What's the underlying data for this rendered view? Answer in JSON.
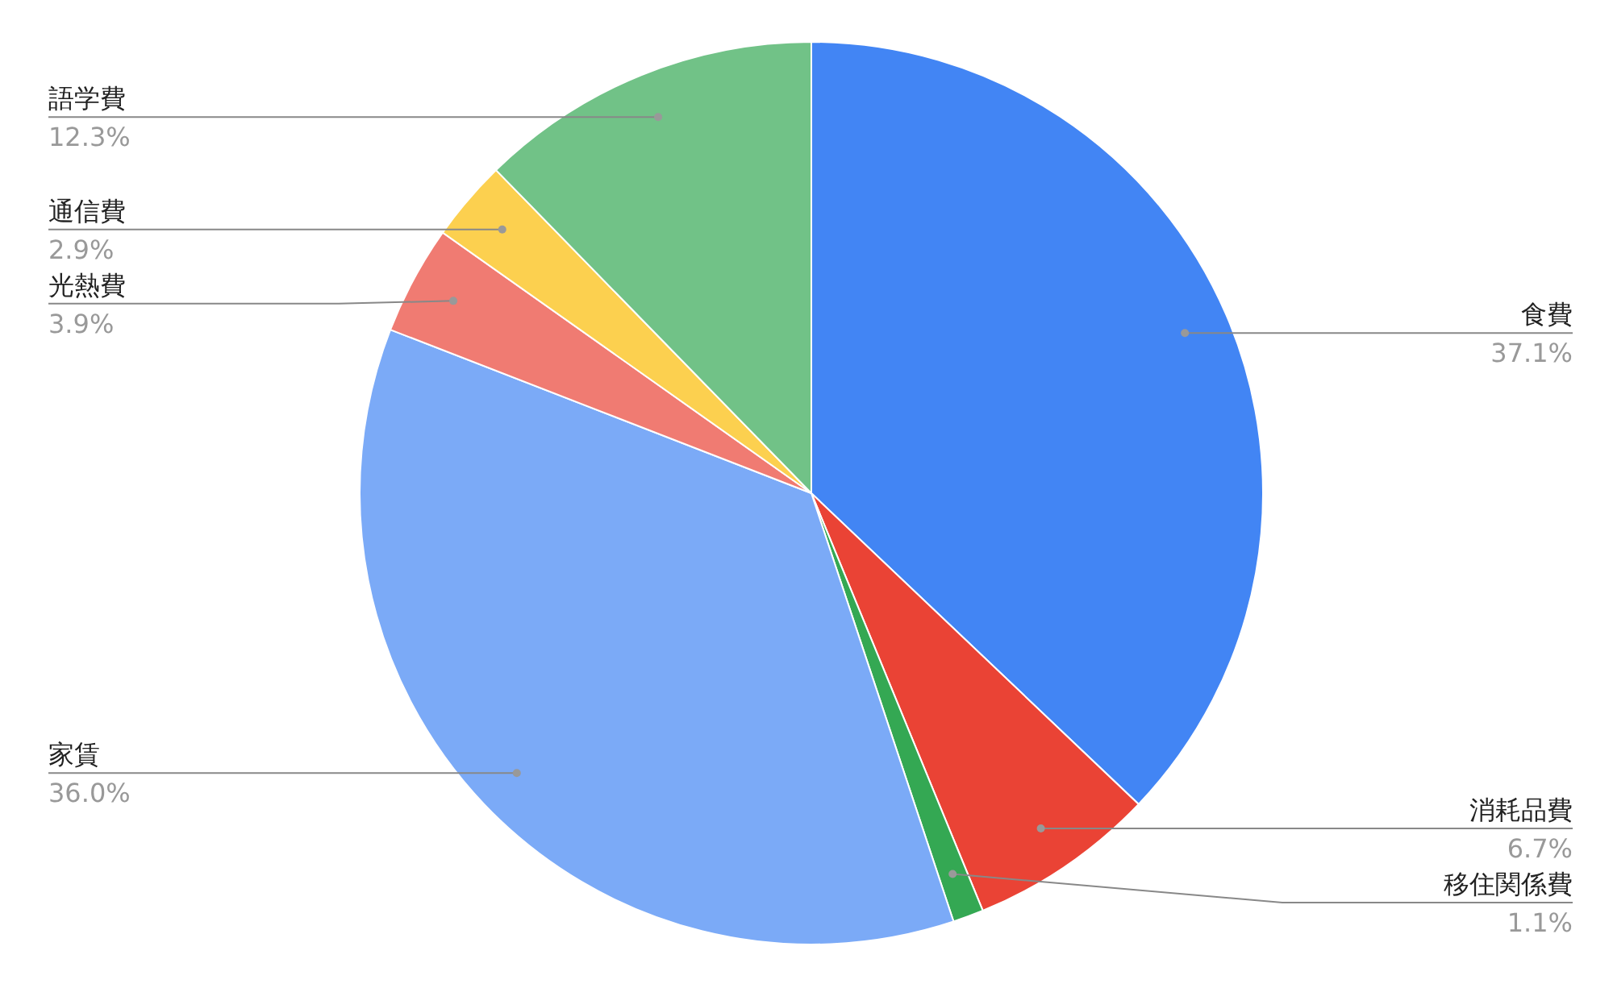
{
  "chart_data": {
    "type": "pie",
    "categories": [
      "食費",
      "消耗品費",
      "移住関係費",
      "家賃",
      "光熱費",
      "通信費",
      "語学費"
    ],
    "values": [
      37.1,
      6.7,
      1.1,
      36.0,
      3.9,
      2.9,
      12.3
    ],
    "colors": [
      "#4285f4",
      "#ea4335",
      "#34a853",
      "#7baaf7",
      "#f07b72",
      "#fcd04f",
      "#71c287"
    ],
    "value_labels": [
      "37.1%",
      "6.7%",
      "1.1%",
      "36.0%",
      "3.9%",
      "2.9%",
      "12.3%"
    ]
  }
}
